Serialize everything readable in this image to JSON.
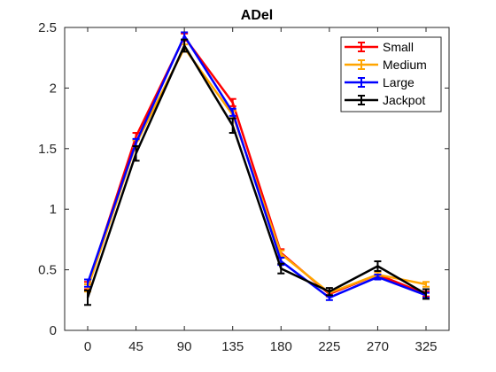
{
  "chart_data": {
    "type": "line",
    "title": "ADel",
    "xlabel": "",
    "ylabel": "",
    "x": [
      0,
      45,
      90,
      135,
      180,
      225,
      270,
      325
    ],
    "x_tick_labels": [
      "0",
      "45",
      "90",
      "135",
      "180",
      "225",
      "270",
      "325"
    ],
    "y_ticks": [
      0,
      0.5,
      1,
      1.5,
      2,
      2.5
    ],
    "y_tick_labels": [
      "0",
      "0.5",
      "1",
      "1.5",
      "2",
      "2.5"
    ],
    "ylim": [
      0,
      2.5
    ],
    "grid": false,
    "legend_position": "top-right",
    "error_bars": true,
    "series": [
      {
        "name": "Small",
        "color": "#ff0000",
        "values": [
          0.37,
          1.6,
          2.42,
          1.88,
          0.64,
          0.3,
          0.46,
          0.3
        ],
        "errors": [
          0.03,
          0.03,
          0.03,
          0.03,
          0.03,
          0.02,
          0.02,
          0.02
        ]
      },
      {
        "name": "Medium",
        "color": "#ffa500",
        "values": [
          0.35,
          1.54,
          2.33,
          1.78,
          0.63,
          0.31,
          0.46,
          0.38
        ],
        "errors": [
          0.03,
          0.03,
          0.03,
          0.03,
          0.03,
          0.02,
          0.02,
          0.02
        ]
      },
      {
        "name": "Large",
        "color": "#0000ff",
        "values": [
          0.39,
          1.55,
          2.43,
          1.8,
          0.57,
          0.27,
          0.44,
          0.29
        ],
        "errors": [
          0.03,
          0.03,
          0.03,
          0.03,
          0.03,
          0.02,
          0.02,
          0.02
        ]
      },
      {
        "name": "Jackpot",
        "color": "#000000",
        "values": [
          0.27,
          1.46,
          2.35,
          1.69,
          0.51,
          0.32,
          0.53,
          0.3
        ],
        "errors": [
          0.06,
          0.06,
          0.05,
          0.06,
          0.04,
          0.03,
          0.04,
          0.04
        ]
      }
    ]
  }
}
